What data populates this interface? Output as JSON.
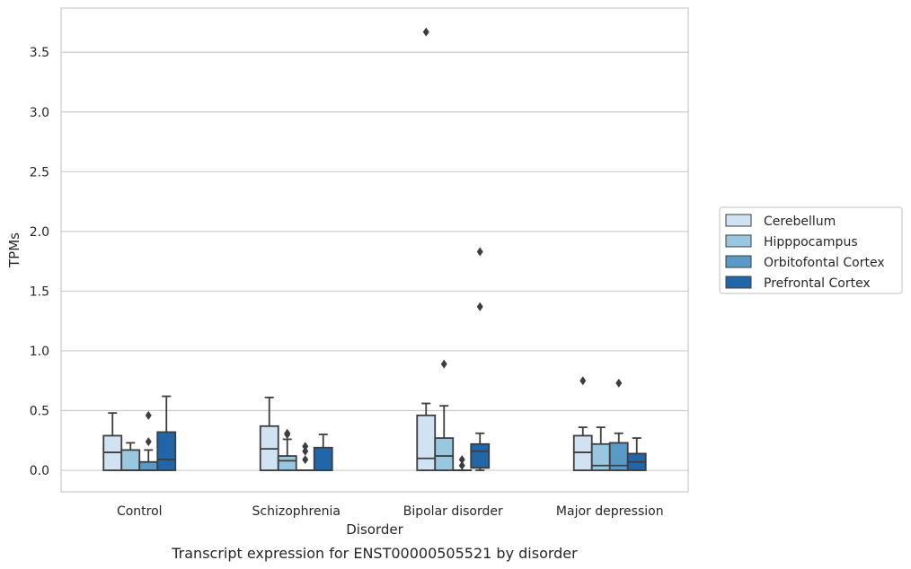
{
  "chart_data": {
    "type": "box",
    "caption": "Transcript expression for ENST00000505521 by disorder",
    "xlabel": "Disorder",
    "ylabel": "TPMs",
    "ylim": [
      -0.18,
      3.87
    ],
    "yticks": [
      0.0,
      0.5,
      1.0,
      1.5,
      2.0,
      2.5,
      3.0,
      3.5
    ],
    "ytick_labels": [
      "0.0",
      "0.5",
      "1.0",
      "1.5",
      "2.0",
      "2.5",
      "3.0",
      "3.5"
    ],
    "grid": "horizontal",
    "legend_position": "right",
    "categories": [
      "Control",
      "Schizophrenia",
      "Bipolar disorder",
      "Major depression"
    ],
    "series": [
      {
        "name": "Cerebellum",
        "color": "#d1e2f2",
        "boxes": [
          {
            "q1": 0.0,
            "median": 0.15,
            "q3": 0.29,
            "whisker_low": 0.0,
            "whisker_high": 0.48,
            "outliers": []
          },
          {
            "q1": 0.0,
            "median": 0.18,
            "q3": 0.37,
            "whisker_low": 0.0,
            "whisker_high": 0.61,
            "outliers": []
          },
          {
            "q1": 0.0,
            "median": 0.1,
            "q3": 0.46,
            "whisker_low": 0.0,
            "whisker_high": 0.56,
            "outliers": [
              3.67
            ]
          },
          {
            "q1": 0.0,
            "median": 0.15,
            "q3": 0.29,
            "whisker_low": 0.0,
            "whisker_high": 0.36,
            "outliers": [
              0.75
            ]
          }
        ]
      },
      {
        "name": "Hipppocampus",
        "color": "#9ac7e0",
        "boxes": [
          {
            "q1": 0.0,
            "median": 0.0,
            "q3": 0.17,
            "whisker_low": 0.0,
            "whisker_high": 0.23,
            "outliers": []
          },
          {
            "q1": 0.0,
            "median": 0.08,
            "q3": 0.12,
            "whisker_low": 0.0,
            "whisker_high": 0.26,
            "outliers": [
              0.3,
              0.31
            ]
          },
          {
            "q1": 0.0,
            "median": 0.12,
            "q3": 0.27,
            "whisker_low": 0.0,
            "whisker_high": 0.54,
            "outliers": [
              0.89
            ]
          },
          {
            "q1": 0.0,
            "median": 0.04,
            "q3": 0.22,
            "whisker_low": 0.0,
            "whisker_high": 0.36,
            "outliers": []
          }
        ]
      },
      {
        "name": "Orbitofontal Cortex",
        "color": "#5a9ac8",
        "boxes": [
          {
            "q1": 0.0,
            "median": 0.0,
            "q3": 0.07,
            "whisker_low": 0.0,
            "whisker_high": 0.17,
            "outliers": [
              0.24,
              0.46
            ]
          },
          {
            "q1": 0.0,
            "median": 0.0,
            "q3": 0.0,
            "whisker_low": 0.0,
            "whisker_high": 0.0,
            "outliers": [
              0.09,
              0.16,
              0.2
            ]
          },
          {
            "q1": 0.0,
            "median": 0.0,
            "q3": 0.0,
            "whisker_low": 0.0,
            "whisker_high": 0.0,
            "outliers": [
              0.04,
              0.09
            ]
          },
          {
            "q1": 0.0,
            "median": 0.04,
            "q3": 0.23,
            "whisker_low": 0.0,
            "whisker_high": 0.31,
            "outliers": [
              0.73
            ]
          }
        ]
      },
      {
        "name": "Prefrontal Cortex",
        "color": "#2266aa",
        "boxes": [
          {
            "q1": 0.0,
            "median": 0.09,
            "q3": 0.32,
            "whisker_low": 0.0,
            "whisker_high": 0.62,
            "outliers": []
          },
          {
            "q1": 0.0,
            "median": 0.0,
            "q3": 0.19,
            "whisker_low": 0.0,
            "whisker_high": 0.3,
            "outliers": []
          },
          {
            "q1": 0.02,
            "median": 0.16,
            "q3": 0.22,
            "whisker_low": 0.0,
            "whisker_high": 0.31,
            "outliers": [
              1.37,
              1.83
            ]
          },
          {
            "q1": 0.0,
            "median": 0.07,
            "q3": 0.14,
            "whisker_low": 0.0,
            "whisker_high": 0.27,
            "outliers": []
          }
        ]
      }
    ]
  }
}
